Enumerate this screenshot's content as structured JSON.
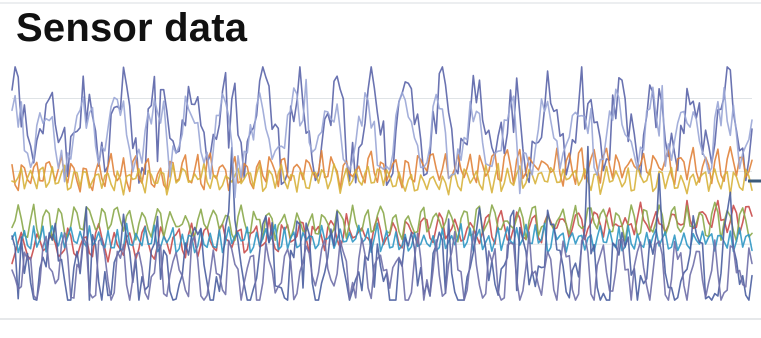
{
  "chart_data": {
    "type": "line",
    "title": "Sensor data",
    "xlabel": "",
    "ylabel": "",
    "ylim": [
      0,
      1
    ],
    "grid": true,
    "legend": "none",
    "n_points": 240,
    "series": [
      {
        "color": "#5a64a8",
        "center": 0.74,
        "amp": 0.16,
        "spike": 0.26,
        "period": 11.5,
        "seed": 1
      },
      {
        "color": "#e0823a",
        "center": 0.56,
        "amp": 0.05,
        "spike": 0.0,
        "period": 4.0,
        "seed": 2,
        "trend": 0.04
      },
      {
        "color": "#d7b33c",
        "center": 0.52,
        "amp": 0.04,
        "spike": 0.0,
        "period": 3.5,
        "seed": 3
      },
      {
        "color": "#c94a4a",
        "center": 0.3,
        "amp": 0.05,
        "spike": 0.0,
        "period": 5.0,
        "seed": 4,
        "trend": 0.12
      },
      {
        "color": "#8aa84a",
        "center": 0.34,
        "amp": 0.05,
        "spike": 0.0,
        "period": 4.5,
        "seed": 5
      },
      {
        "color": "#2f97c4",
        "center": 0.27,
        "amp": 0.04,
        "spike": 0.0,
        "period": 3.0,
        "seed": 6
      },
      {
        "color": "#4a5ea0",
        "center": 0.18,
        "amp": 0.14,
        "spike": 0.24,
        "period": 11.5,
        "seed": 7
      },
      {
        "color": "#9aa6d6",
        "center": 0.7,
        "amp": 0.12,
        "spike": 0.18,
        "period": 11.5,
        "seed": 8
      },
      {
        "color": "#6f6fa8",
        "center": 0.14,
        "amp": 0.1,
        "spike": 0.0,
        "period": 6.0,
        "seed": 9
      }
    ]
  }
}
